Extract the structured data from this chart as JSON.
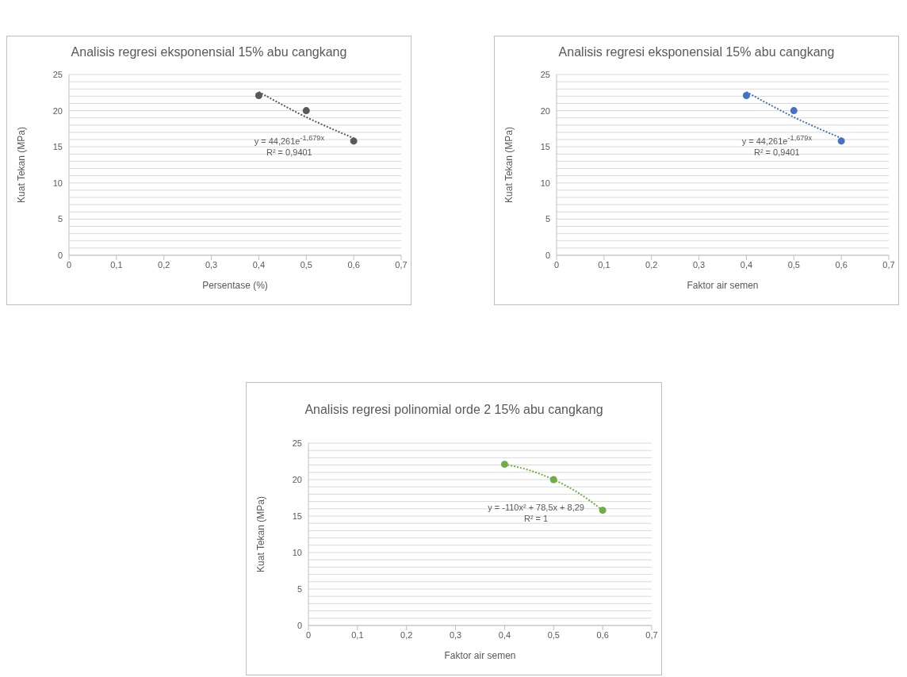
{
  "chart_data": [
    {
      "type": "scatter",
      "title": "Analisis regresi eksponensial 15% abu cangkang",
      "xlabel": "Persentase (%)",
      "ylabel": "Kuat Tekan (MPa)",
      "series": [
        {
          "color": "#595959",
          "marker": "circle",
          "x": [
            0.4,
            0.5,
            0.6
          ],
          "values": [
            22.1,
            20,
            15.8
          ]
        },
        {
          "type": "line",
          "marker": "none",
          "line_style": "dotted",
          "color": "#595959",
          "x": [
            0.4,
            0.45,
            0.5,
            0.55,
            0.6
          ],
          "values": [
            22.6,
            20.8,
            19.1,
            17.6,
            16.2
          ]
        }
      ],
      "annotations": [
        "y = 44,261e$^{-1,679x}$",
        "R² = 0,9401"
      ],
      "xlim": [
        0,
        0.7
      ],
      "xticks": [
        {
          "value": 0,
          "label": "0"
        },
        {
          "value": 0.1,
          "label": "0,1"
        },
        {
          "value": 0.2,
          "label": "0,2"
        },
        {
          "value": 0.3,
          "label": "0,3"
        },
        {
          "value": 0.4,
          "label": "0,4"
        },
        {
          "value": 0.5,
          "label": "0,5"
        },
        {
          "value": 0.6,
          "label": "0,6"
        },
        {
          "value": 0.7,
          "label": "0,7"
        }
      ],
      "ylim": [
        0,
        25
      ],
      "yticks": [
        0,
        {
          "value": 1,
          "label": null
        },
        {
          "value": 2,
          "label": null
        },
        {
          "value": 3,
          "label": null
        },
        {
          "value": 4,
          "label": null
        },
        5,
        {
          "value": 6,
          "label": null
        },
        {
          "value": 7,
          "label": null
        },
        {
          "value": 8,
          "label": null
        },
        {
          "value": 9,
          "label": null
        },
        10,
        {
          "value": 11,
          "label": null
        },
        {
          "value": 12,
          "label": null
        },
        {
          "value": 13,
          "label": null
        },
        {
          "value": 14,
          "label": null
        },
        15,
        {
          "value": 16,
          "label": null
        },
        {
          "value": 17,
          "label": null
        },
        {
          "value": 18,
          "label": null
        },
        {
          "value": 19,
          "label": null
        },
        20,
        {
          "value": 21,
          "label": null
        },
        {
          "value": 22,
          "label": null
        },
        {
          "value": 23,
          "label": null
        },
        {
          "value": 24,
          "label": null
        },
        25
      ],
      "grid": "y"
    },
    {
      "type": "scatter",
      "title": "Analisis regresi eksponensial 15% abu cangkang",
      "xlabel": "Faktor air semen",
      "ylabel": "Kuat Tekan (MPa)",
      "series": [
        {
          "color": "#4472c4",
          "marker": "circle",
          "x": [
            0.4,
            0.5,
            0.6
          ],
          "values": [
            22.1,
            20,
            15.8
          ]
        },
        {
          "type": "line",
          "marker": "none",
          "line_style": "dotted",
          "color": "#4472c4",
          "x": [
            0.4,
            0.45,
            0.5,
            0.55,
            0.6
          ],
          "values": [
            22.6,
            20.8,
            19.1,
            17.6,
            16.2
          ]
        }
      ],
      "annotations": [
        "y = 44,261e$^{-1,679x}$",
        "R² = 0,9401"
      ],
      "xlim": [
        0,
        0.7
      ],
      "xticks": [
        {
          "value": 0,
          "label": "0"
        },
        {
          "value": 0.1,
          "label": "0,1"
        },
        {
          "value": 0.2,
          "label": "0,2"
        },
        {
          "value": 0.3,
          "label": "0,3"
        },
        {
          "value": 0.4,
          "label": "0,4"
        },
        {
          "value": 0.5,
          "label": "0,5"
        },
        {
          "value": 0.6,
          "label": "0,6"
        },
        {
          "value": 0.7,
          "label": "0,7"
        }
      ],
      "ylim": [
        0,
        25
      ],
      "yticks": [
        0,
        {
          "value": 1,
          "label": null
        },
        {
          "value": 2,
          "label": null
        },
        {
          "value": 3,
          "label": null
        },
        {
          "value": 4,
          "label": null
        },
        5,
        {
          "value": 6,
          "label": null
        },
        {
          "value": 7,
          "label": null
        },
        {
          "value": 8,
          "label": null
        },
        {
          "value": 9,
          "label": null
        },
        10,
        {
          "value": 11,
          "label": null
        },
        {
          "value": 12,
          "label": null
        },
        {
          "value": 13,
          "label": null
        },
        {
          "value": 14,
          "label": null
        },
        15,
        {
          "value": 16,
          "label": null
        },
        {
          "value": 17,
          "label": null
        },
        {
          "value": 18,
          "label": null
        },
        {
          "value": 19,
          "label": null
        },
        20,
        {
          "value": 21,
          "label": null
        },
        {
          "value": 22,
          "label": null
        },
        {
          "value": 23,
          "label": null
        },
        {
          "value": 24,
          "label": null
        },
        25
      ],
      "grid": "y"
    },
    {
      "type": "scatter",
      "title": "Analisis regresi polinomial orde 2 15% abu cangkang",
      "xlabel": "Faktor air semen",
      "ylabel": "Kuat Tekan (MPa)",
      "series": [
        {
          "color": "#70ad47",
          "marker": "circle",
          "x": [
            0.4,
            0.5,
            0.6
          ],
          "values": [
            22.1,
            20,
            15.8
          ]
        },
        {
          "type": "line",
          "marker": "none",
          "line_style": "dotted",
          "color": "#70ad47",
          "x": [
            0.4,
            0.45,
            0.5,
            0.55,
            0.6
          ],
          "values": [
            22.1,
            21.3,
            20,
            18.2,
            15.8
          ]
        }
      ],
      "annotations": [
        "y = -110x² + 78,5x + 8,29",
        "R² = 1"
      ],
      "xlim": [
        0,
        0.7
      ],
      "xticks": [
        {
          "value": 0,
          "label": "0"
        },
        {
          "value": 0.1,
          "label": "0,1"
        },
        {
          "value": 0.2,
          "label": "0,2"
        },
        {
          "value": 0.3,
          "label": "0,3"
        },
        {
          "value": 0.4,
          "label": "0,4"
        },
        {
          "value": 0.5,
          "label": "0,5"
        },
        {
          "value": 0.6,
          "label": "0,6"
        },
        {
          "value": 0.7,
          "label": "0,7"
        }
      ],
      "ylim": [
        0,
        25
      ],
      "yticks": [
        0,
        {
          "value": 1,
          "label": null
        },
        {
          "value": 2,
          "label": null
        },
        {
          "value": 3,
          "label": null
        },
        {
          "value": 4,
          "label": null
        },
        5,
        {
          "value": 6,
          "label": null
        },
        {
          "value": 7,
          "label": null
        },
        {
          "value": 8,
          "label": null
        },
        {
          "value": 9,
          "label": null
        },
        10,
        {
          "value": 11,
          "label": null
        },
        {
          "value": 12,
          "label": null
        },
        {
          "value": 13,
          "label": null
        },
        {
          "value": 14,
          "label": null
        },
        15,
        {
          "value": 16,
          "label": null
        },
        {
          "value": 17,
          "label": null
        },
        {
          "value": 18,
          "label": null
        },
        {
          "value": 19,
          "label": null
        },
        20,
        {
          "value": 21,
          "label": null
        },
        {
          "value": 22,
          "label": null
        },
        {
          "value": 23,
          "label": null
        },
        {
          "value": 24,
          "label": null
        },
        25
      ],
      "grid": "y"
    }
  ]
}
